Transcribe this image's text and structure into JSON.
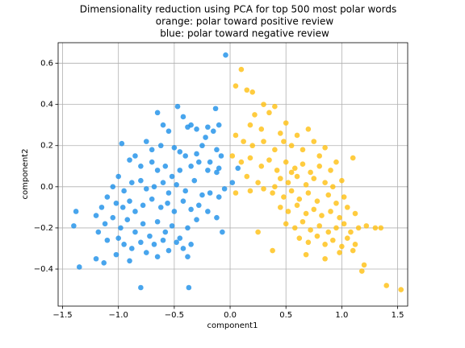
{
  "chart_data": {
    "type": "scatter",
    "title": [
      "Dimensionality reduction using PCA for top 500 most polar words",
      "orange: polar toward positive review",
      "blue: polar toward negative review"
    ],
    "xlabel": "component1",
    "ylabel": "component2",
    "xlim": [
      -1.54,
      1.59
    ],
    "ylim": [
      -0.58,
      0.7
    ],
    "xticks": [
      {
        "value": -1.5,
        "label": "−1.5"
      },
      {
        "value": -1,
        "label": "−1.0"
      },
      {
        "value": -0.5,
        "label": "−0.5"
      },
      {
        "value": 0,
        "label": "0.0"
      },
      {
        "value": 0.5,
        "label": "0.5"
      },
      {
        "value": 1,
        "label": "1.0"
      },
      {
        "value": 1.5,
        "label": "1.5"
      }
    ],
    "yticks": [
      {
        "value": -0.4,
        "label": "−0.4"
      },
      {
        "value": -0.2,
        "label": "−0.2"
      },
      {
        "value": 0,
        "label": "0.0"
      },
      {
        "value": 0.2,
        "label": "0.2"
      },
      {
        "value": 0.4,
        "label": "0.4"
      },
      {
        "value": 0.6,
        "label": "0.6"
      }
    ],
    "grid": true,
    "series": [
      {
        "color": "#1a8fe8",
        "x": [
          -1.35,
          -1.4,
          -1.38,
          -1.2,
          -1.13,
          -0.8,
          -0.37,
          -0.04,
          -0.13,
          -0.97,
          -0.65,
          -0.47,
          -0.42,
          -0.3,
          -0.6,
          -0.55,
          -0.35,
          -0.38,
          -0.2,
          -0.15,
          -0.1,
          -0.22,
          -0.75,
          -0.7,
          -0.62,
          -0.5,
          -0.45,
          -0.4,
          -0.3,
          -0.25,
          -0.12,
          -0.08,
          -0.18,
          -0.85,
          -0.9,
          -0.8,
          -0.7,
          -0.65,
          -0.58,
          -0.52,
          -0.45,
          -0.35,
          -0.28,
          -0.2,
          -0.1,
          0.07,
          -0.12,
          -1.0,
          -1.05,
          -0.95,
          -0.88,
          -0.8,
          -0.75,
          -0.68,
          -0.6,
          -0.55,
          -0.48,
          -0.4,
          -0.32,
          -0.25,
          -0.18,
          -0.1,
          -0.05,
          0.02,
          -1.1,
          -1.02,
          -0.96,
          -0.9,
          -0.85,
          -0.78,
          -0.7,
          -0.62,
          -0.56,
          -0.5,
          -0.42,
          -0.35,
          -0.28,
          -0.2,
          -0.12,
          -0.07,
          -1.15,
          -1.2,
          -1.12,
          -1.05,
          -0.98,
          -0.92,
          -0.85,
          -0.78,
          -0.72,
          -0.65,
          -0.58,
          -0.52,
          -0.45,
          -0.38,
          -0.3,
          -1.18,
          -1.1,
          -1.0,
          -0.95,
          -0.88,
          -0.8,
          -0.75,
          -0.68,
          -0.6,
          -0.55,
          -0.48,
          -0.42,
          -0.35,
          -0.38,
          -0.65,
          -1.02,
          -0.9
        ],
        "values": [
          -0.39,
          -0.19,
          -0.12,
          -0.35,
          -0.37,
          -0.49,
          -0.49,
          0.64,
          0.38,
          0.21,
          0.36,
          0.39,
          0.34,
          0.28,
          0.3,
          0.27,
          0.3,
          0.29,
          0.29,
          0.27,
          0.3,
          0.24,
          0.22,
          0.18,
          0.2,
          0.19,
          0.17,
          0.15,
          0.16,
          0.2,
          0.18,
          0.15,
          0.12,
          0.15,
          0.13,
          0.1,
          0.12,
          0.08,
          0.1,
          0.05,
          0.08,
          0.1,
          0.12,
          0.08,
          0.09,
          0.09,
          0.07,
          0.05,
          0.0,
          -0.02,
          0.02,
          0.03,
          -0.01,
          0.0,
          0.02,
          -0.03,
          0.01,
          -0.02,
          0.03,
          -0.04,
          -0.03,
          -0.05,
          -0.01,
          0.02,
          -0.05,
          -0.08,
          -0.1,
          -0.07,
          -0.12,
          -0.09,
          -0.06,
          -0.1,
          -0.08,
          -0.12,
          -0.07,
          -0.11,
          -0.09,
          -0.12,
          -0.15,
          -0.22,
          -0.1,
          -0.14,
          -0.18,
          -0.15,
          -0.2,
          -0.16,
          -0.22,
          -0.18,
          -0.24,
          -0.17,
          -0.22,
          -0.19,
          -0.25,
          -0.2,
          -0.16,
          -0.22,
          -0.26,
          -0.25,
          -0.28,
          -0.3,
          -0.27,
          -0.32,
          -0.28,
          -0.26,
          -0.31,
          -0.27,
          -0.3,
          -0.28,
          -0.34,
          -0.34,
          -0.33,
          -0.36
        ]
      },
      {
        "color": "#ffbf0f",
        "x": [
          0.1,
          0.05,
          0.2,
          0.15,
          1.4,
          1.53,
          1.18,
          1.2,
          1.35,
          1.3,
          1.1,
          0.38,
          0.25,
          0.3,
          0.4,
          0.22,
          0.35,
          0.5,
          0.18,
          0.28,
          0.6,
          0.45,
          0.05,
          0.12,
          0.2,
          0.3,
          0.4,
          0.48,
          0.55,
          0.65,
          0.75,
          0.85,
          0.7,
          0.8,
          0.02,
          0.1,
          0.18,
          0.28,
          0.35,
          0.42,
          0.5,
          0.58,
          0.65,
          0.72,
          0.8,
          0.9,
          0.95,
          0.15,
          0.25,
          0.4,
          0.45,
          0.52,
          0.6,
          0.68,
          0.75,
          0.85,
          0.92,
          1.0,
          0.55,
          0.05,
          0.18,
          0.3,
          0.38,
          0.48,
          0.55,
          0.62,
          0.7,
          0.78,
          0.88,
          0.95,
          1.02,
          0.45,
          0.52,
          0.6,
          0.68,
          0.75,
          0.82,
          0.9,
          0.98,
          1.05,
          1.12,
          0.5,
          0.58,
          0.65,
          0.72,
          0.8,
          0.88,
          0.95,
          1.02,
          1.08,
          1.15,
          1.22,
          0.62,
          0.7,
          0.78,
          0.85,
          0.92,
          1.0,
          1.05,
          1.12,
          0.68,
          0.85,
          0.98,
          1.1
        ],
        "values": [
          0.57,
          0.49,
          0.46,
          0.47,
          -0.48,
          -0.5,
          -0.41,
          -0.38,
          -0.2,
          -0.2,
          0.14,
          -0.31,
          -0.22,
          0.4,
          0.39,
          0.35,
          0.36,
          0.31,
          0.3,
          0.28,
          0.25,
          0.26,
          0.25,
          0.22,
          0.2,
          0.22,
          0.18,
          0.22,
          0.2,
          0.18,
          0.22,
          0.19,
          0.28,
          0.15,
          0.15,
          0.12,
          0.14,
          0.1,
          0.13,
          0.08,
          0.12,
          0.09,
          0.11,
          0.07,
          0.1,
          0.08,
          0.12,
          0.05,
          0.02,
          0.0,
          0.04,
          0.02,
          0.05,
          0.01,
          0.04,
          0.02,
          0.0,
          0.03,
          0.07,
          -0.03,
          -0.02,
          -0.01,
          -0.03,
          -0.05,
          -0.02,
          -0.06,
          -0.03,
          -0.07,
          -0.04,
          -0.08,
          -0.05,
          -0.1,
          -0.12,
          -0.09,
          -0.13,
          -0.11,
          -0.14,
          -0.12,
          -0.15,
          -0.1,
          -0.13,
          -0.18,
          -0.2,
          -0.17,
          -0.21,
          -0.19,
          -0.22,
          -0.2,
          -0.18,
          -0.22,
          -0.2,
          -0.19,
          -0.25,
          -0.27,
          -0.24,
          -0.28,
          -0.26,
          -0.29,
          -0.25,
          -0.28,
          -0.33,
          -0.35,
          -0.32,
          -0.31
        ]
      }
    ]
  }
}
